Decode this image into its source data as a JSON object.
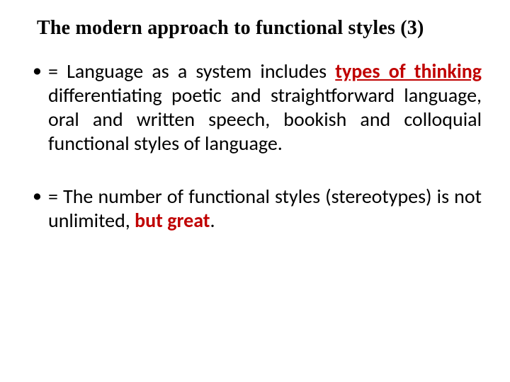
{
  "colors": {
    "background": "#ffffff",
    "text": "#000000",
    "emphasis": "#c00000"
  },
  "typography": {
    "title_font": "Times New Roman",
    "title_size_pt": 28,
    "title_weight": "bold",
    "body_font": "Calibri",
    "body_size_pt": 28,
    "line_height": 1.22
  },
  "title": "The modern approach to functional styles (3)",
  "bullets": [
    {
      "pre1": "= Language as a system includes ",
      "em1": "types of thinking",
      "post1": " differentiating poetic and straightforward language, oral and written speech, bookish and colloquial functional styles of language."
    },
    {
      "pre2": "= The number of functional styles (stereotypes) is not unlimited, ",
      "em2": "but great",
      "post2": "."
    }
  ]
}
